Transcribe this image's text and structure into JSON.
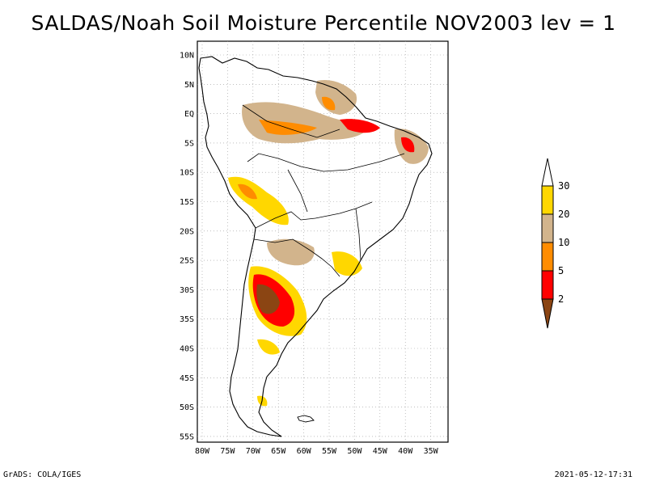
{
  "header": {
    "title": "SALDAS/Noah Soil Moisture Percentile NOV2003 lev = 1"
  },
  "footer": {
    "left": "GrADS: COLA/IGES",
    "right": "2021-05-12-17:31"
  },
  "map": {
    "lat_labels": [
      "10N",
      "5N",
      "EQ",
      "5S",
      "10S",
      "15S",
      "20S",
      "25S",
      "30S",
      "35S",
      "40S",
      "45S",
      "50S",
      "55S"
    ],
    "lon_labels": [
      "80W",
      "75W",
      "70W",
      "65W",
      "60W",
      "55W",
      "50W",
      "45W",
      "40W",
      "35W"
    ]
  },
  "colorbar": {
    "levels": [
      "2",
      "5",
      "10",
      "20",
      "30"
    ],
    "colors": {
      "below_2": "#8b4513",
      "2_5": "#ff0000",
      "5_10": "#ff8c00",
      "10_20": "#d2b48c",
      "20_30": "#ffd700",
      "above_30": "#ffffff"
    }
  }
}
